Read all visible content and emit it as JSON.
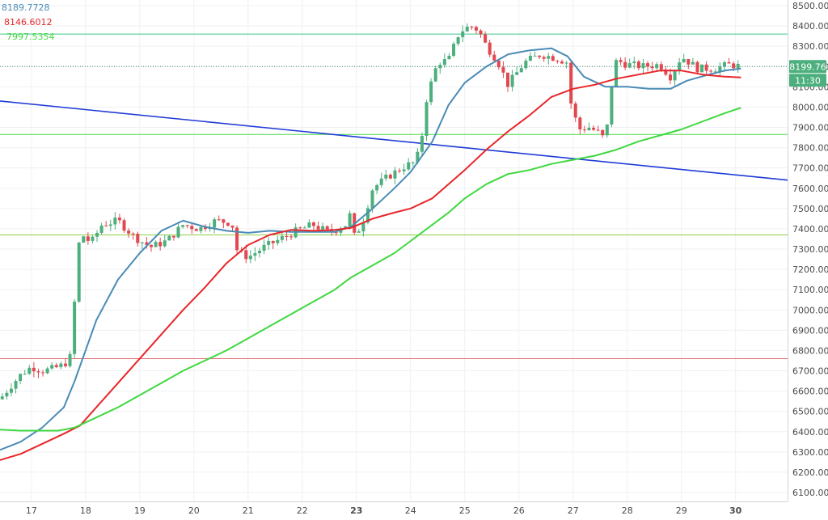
{
  "chart_data": {
    "type": "candlestick",
    "ylim": [
      6050,
      8520
    ],
    "yticks": [
      6100,
      6200,
      6300,
      6400,
      6500,
      6600,
      6700,
      6800,
      6900,
      7000,
      7100,
      7200,
      7300,
      7400,
      7500,
      7600,
      7700,
      7800,
      7900,
      8000,
      8100,
      8200,
      8300,
      8400,
      8500
    ],
    "xlim": [
      16.42,
      30.96
    ],
    "x_ticks": [
      {
        "label": "17",
        "x": 17,
        "bold": false
      },
      {
        "label": "18",
        "x": 18,
        "bold": false
      },
      {
        "label": "19",
        "x": 19,
        "bold": false
      },
      {
        "label": "20",
        "x": 20,
        "bold": false
      },
      {
        "label": "21",
        "x": 21,
        "bold": false
      },
      {
        "label": "22",
        "x": 22,
        "bold": false
      },
      {
        "label": "23",
        "x": 23,
        "bold": true
      },
      {
        "label": "24",
        "x": 24,
        "bold": false
      },
      {
        "label": "25",
        "x": 25,
        "bold": false
      },
      {
        "label": "26",
        "x": 26,
        "bold": false
      },
      {
        "label": "27",
        "x": 27,
        "bold": false
      },
      {
        "label": "28",
        "x": 28,
        "bold": false
      },
      {
        "label": "29",
        "x": 29,
        "bold": false
      },
      {
        "label": "30",
        "x": 30,
        "bold": true
      }
    ],
    "legend": [
      {
        "value": "8189.7728",
        "color": "#4a8bb5"
      },
      {
        "value": "8146.6012",
        "color": "#e8262a"
      },
      {
        "value": "7997.5354",
        "color": "#3fd83f"
      }
    ],
    "last_price": {
      "label": "8199.76",
      "value": 8199.76,
      "color": "#4caf7d"
    },
    "countdown": {
      "label": "11:30",
      "color": "#4caf7d"
    },
    "horizontal_lines": [
      {
        "value": 8360,
        "color": "#3fc88a"
      },
      {
        "value": 8200,
        "color": "#3d8f6d",
        "dotted": true
      },
      {
        "value": 7865,
        "color": "#4cd84c"
      },
      {
        "value": 7370,
        "color": "#8ecf46"
      },
      {
        "value": 6760,
        "color": "#e26a6a"
      }
    ],
    "trendline": {
      "x1": 16.42,
      "y1": 8030,
      "x2": 30.96,
      "y2": 7640,
      "color": "#1f3bd6"
    },
    "ma_series": [
      {
        "color": "#4a8bb5",
        "points": [
          [
            16.42,
            6310
          ],
          [
            16.8,
            6350
          ],
          [
            17.2,
            6420
          ],
          [
            17.6,
            6520
          ],
          [
            17.8,
            6650
          ],
          [
            18.2,
            6950
          ],
          [
            18.6,
            7150
          ],
          [
            19.0,
            7280
          ],
          [
            19.4,
            7390
          ],
          [
            19.8,
            7440
          ],
          [
            20.2,
            7410
          ],
          [
            20.6,
            7390
          ],
          [
            21.0,
            7380
          ],
          [
            21.4,
            7390
          ],
          [
            21.8,
            7385
          ],
          [
            22.2,
            7385
          ],
          [
            22.6,
            7385
          ],
          [
            22.9,
            7410
          ],
          [
            23.3,
            7500
          ],
          [
            23.7,
            7600
          ],
          [
            24.0,
            7680
          ],
          [
            24.4,
            7830
          ],
          [
            24.7,
            8010
          ],
          [
            25.0,
            8120
          ],
          [
            25.4,
            8200
          ],
          [
            25.8,
            8260
          ],
          [
            26.2,
            8280
          ],
          [
            26.6,
            8290
          ],
          [
            26.9,
            8250
          ],
          [
            27.2,
            8150
          ],
          [
            27.6,
            8100
          ],
          [
            28.0,
            8100
          ],
          [
            28.4,
            8090
          ],
          [
            28.8,
            8090
          ],
          [
            29.1,
            8130
          ],
          [
            29.5,
            8160
          ],
          [
            29.8,
            8180
          ],
          [
            30.1,
            8190
          ]
        ]
      },
      {
        "color": "#e8262a",
        "points": [
          [
            16.42,
            6260
          ],
          [
            16.8,
            6290
          ],
          [
            17.2,
            6340
          ],
          [
            17.6,
            6390
          ],
          [
            17.9,
            6430
          ],
          [
            18.2,
            6520
          ],
          [
            18.6,
            6640
          ],
          [
            19.0,
            6760
          ],
          [
            19.4,
            6880
          ],
          [
            19.8,
            7000
          ],
          [
            20.2,
            7110
          ],
          [
            20.6,
            7230
          ],
          [
            21.0,
            7320
          ],
          [
            21.4,
            7370
          ],
          [
            21.8,
            7395
          ],
          [
            22.2,
            7390
          ],
          [
            22.6,
            7395
          ],
          [
            22.9,
            7405
          ],
          [
            23.3,
            7450
          ],
          [
            23.7,
            7480
          ],
          [
            24.0,
            7500
          ],
          [
            24.4,
            7550
          ],
          [
            24.7,
            7620
          ],
          [
            25.0,
            7690
          ],
          [
            25.4,
            7790
          ],
          [
            25.8,
            7880
          ],
          [
            26.2,
            7960
          ],
          [
            26.6,
            8050
          ],
          [
            27.0,
            8090
          ],
          [
            27.4,
            8110
          ],
          [
            27.8,
            8140
          ],
          [
            28.2,
            8160
          ],
          [
            28.6,
            8180
          ],
          [
            29.0,
            8180
          ],
          [
            29.4,
            8160
          ],
          [
            29.8,
            8150
          ],
          [
            30.1,
            8146
          ]
        ]
      },
      {
        "color": "#3fd83f",
        "points": [
          [
            16.42,
            6410
          ],
          [
            16.8,
            6405
          ],
          [
            17.2,
            6405
          ],
          [
            17.5,
            6405
          ],
          [
            17.8,
            6420
          ],
          [
            18.2,
            6470
          ],
          [
            18.6,
            6520
          ],
          [
            19.0,
            6580
          ],
          [
            19.4,
            6640
          ],
          [
            19.8,
            6700
          ],
          [
            20.2,
            6750
          ],
          [
            20.6,
            6800
          ],
          [
            21.0,
            6860
          ],
          [
            21.4,
            6920
          ],
          [
            21.8,
            6980
          ],
          [
            22.2,
            7040
          ],
          [
            22.6,
            7100
          ],
          [
            22.9,
            7160
          ],
          [
            23.3,
            7220
          ],
          [
            23.7,
            7280
          ],
          [
            24.0,
            7340
          ],
          [
            24.4,
            7420
          ],
          [
            24.7,
            7480
          ],
          [
            25.0,
            7550
          ],
          [
            25.4,
            7620
          ],
          [
            25.8,
            7670
          ],
          [
            26.2,
            7690
          ],
          [
            26.6,
            7720
          ],
          [
            27.0,
            7740
          ],
          [
            27.4,
            7760
          ],
          [
            27.8,
            7790
          ],
          [
            28.2,
            7830
          ],
          [
            28.6,
            7860
          ],
          [
            29.0,
            7890
          ],
          [
            29.4,
            7930
          ],
          [
            29.8,
            7970
          ],
          [
            30.1,
            7997
          ]
        ]
      }
    ],
    "price_path": [
      [
        16.42,
        6560
      ],
      [
        16.6,
        6620
      ],
      [
        16.8,
        6680
      ],
      [
        17.0,
        6720
      ],
      [
        17.2,
        6700
      ],
      [
        17.4,
        6710
      ],
      [
        17.6,
        6730
      ],
      [
        17.75,
        6780
      ],
      [
        17.82,
        7180
      ],
      [
        17.9,
        7380
      ],
      [
        18.1,
        7330
      ],
      [
        18.3,
        7420
      ],
      [
        18.6,
        7440
      ],
      [
        18.9,
        7360
      ],
      [
        19.2,
        7310
      ],
      [
        19.5,
        7340
      ],
      [
        19.8,
        7420
      ],
      [
        20.1,
        7400
      ],
      [
        20.4,
        7440
      ],
      [
        20.7,
        7430
      ],
      [
        20.8,
        7290
      ],
      [
        21.0,
        7260
      ],
      [
        21.3,
        7310
      ],
      [
        21.6,
        7350
      ],
      [
        21.9,
        7390
      ],
      [
        22.2,
        7420
      ],
      [
        22.5,
        7380
      ],
      [
        22.8,
        7420
      ],
      [
        22.9,
        7480
      ],
      [
        22.95,
        7360
      ],
      [
        23.1,
        7420
      ],
      [
        23.3,
        7600
      ],
      [
        23.6,
        7660
      ],
      [
        23.9,
        7710
      ],
      [
        24.1,
        7730
      ],
      [
        24.2,
        7840
      ],
      [
        24.3,
        8050
      ],
      [
        24.5,
        8220
      ],
      [
        24.7,
        8230
      ],
      [
        24.9,
        8370
      ],
      [
        25.1,
        8400
      ],
      [
        25.25,
        8380
      ],
      [
        25.4,
        8300
      ],
      [
        25.6,
        8230
      ],
      [
        25.8,
        8110
      ],
      [
        26.1,
        8220
      ],
      [
        26.4,
        8260
      ],
      [
        26.7,
        8240
      ],
      [
        26.9,
        8220
      ],
      [
        26.95,
        8030
      ],
      [
        27.1,
        7890
      ],
      [
        27.3,
        7900
      ],
      [
        27.5,
        7870
      ],
      [
        27.6,
        7830
      ],
      [
        27.7,
        8090
      ],
      [
        27.8,
        8230
      ],
      [
        28.0,
        8210
      ],
      [
        28.3,
        8200
      ],
      [
        28.6,
        8210
      ],
      [
        28.8,
        8150
      ],
      [
        29.0,
        8250
      ],
      [
        29.3,
        8190
      ],
      [
        29.6,
        8190
      ],
      [
        29.9,
        8210
      ],
      [
        30.1,
        8200
      ]
    ],
    "colors": {
      "up": "#4caf7d",
      "down": "#e2484f",
      "grid": "#eef0f3",
      "axis_line": "#cfd3d8"
    }
  }
}
